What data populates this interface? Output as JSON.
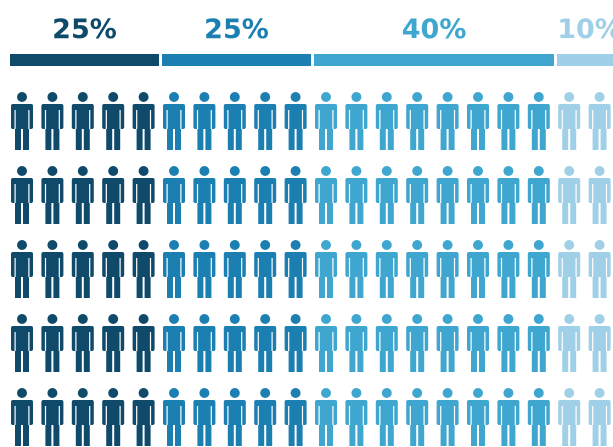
{
  "chart_data": {
    "type": "pictogram",
    "total_icons": 100,
    "rows": 5,
    "icons_per_row": 20,
    "segments": [
      {
        "label": "25%",
        "value": 25,
        "icons_per_row": 5,
        "color": "#0f4a6b"
      },
      {
        "label": "25%",
        "value": 25,
        "icons_per_row": 5,
        "color": "#1c7fb1"
      },
      {
        "label": "40%",
        "value": 40,
        "icons_per_row": 8,
        "color": "#3fa7cf"
      },
      {
        "label": "10%",
        "value": 10,
        "icons_per_row": 2,
        "color": "#9fd0e7"
      }
    ]
  }
}
